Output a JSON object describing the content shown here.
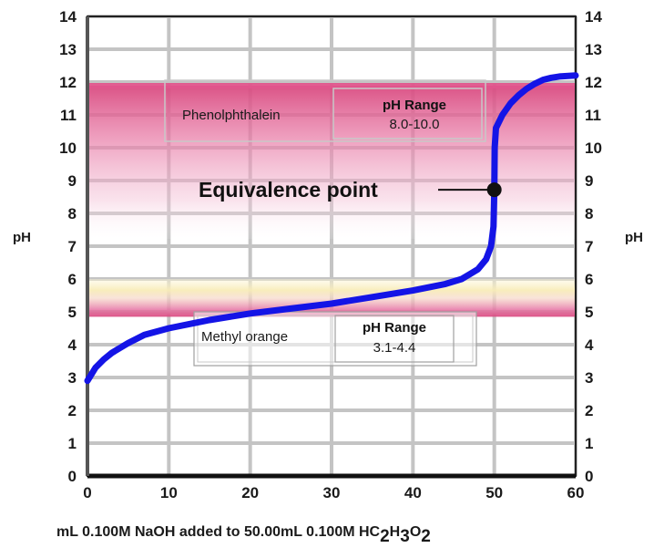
{
  "chart_data": {
    "type": "line",
    "title": "",
    "xlabel": {
      "prefix": "mL 0.100M NaOH added to 50.00mL 0.100M HC",
      "sub1": "2",
      "mid1": "H",
      "sub2": "3",
      "mid2": "O",
      "sub3": "2"
    },
    "ylabel": "pH",
    "ylabel_right": "pH",
    "xlim": [
      0,
      60
    ],
    "ylim": [
      0,
      14
    ],
    "x_ticks": [
      0,
      10,
      20,
      30,
      40,
      50,
      60
    ],
    "y_ticks": [
      0,
      1,
      2,
      3,
      4,
      5,
      6,
      7,
      8,
      9,
      10,
      11,
      12,
      13,
      14
    ],
    "grid": true,
    "series": [
      {
        "color": "#1414e6",
        "points": [
          [
            0,
            2.9
          ],
          [
            1,
            3.3
          ],
          [
            2,
            3.55
          ],
          [
            3,
            3.75
          ],
          [
            5,
            4.05
          ],
          [
            7,
            4.3
          ],
          [
            10,
            4.5
          ],
          [
            13,
            4.65
          ],
          [
            15,
            4.75
          ],
          [
            20,
            4.95
          ],
          [
            25,
            5.1
          ],
          [
            30,
            5.25
          ],
          [
            35,
            5.45
          ],
          [
            40,
            5.65
          ],
          [
            44,
            5.85
          ],
          [
            46,
            6.0
          ],
          [
            47,
            6.15
          ],
          [
            48,
            6.3
          ],
          [
            49,
            6.6
          ],
          [
            49.6,
            7.0
          ],
          [
            49.9,
            7.6
          ],
          [
            50,
            8.72
          ],
          [
            50.05,
            10.0
          ],
          [
            50.2,
            10.6
          ],
          [
            51,
            11.0
          ],
          [
            52,
            11.35
          ],
          [
            53,
            11.6
          ],
          [
            54,
            11.8
          ],
          [
            55,
            11.95
          ],
          [
            56,
            12.07
          ],
          [
            57,
            12.13
          ],
          [
            58,
            12.17
          ],
          [
            60,
            12.2
          ]
        ]
      }
    ],
    "bands": [
      {
        "name": "phenolphthalein-band",
        "from": 8.0,
        "to": 12.0,
        "color": "#e0558c"
      },
      {
        "name": "methyl-orange-band",
        "from": 4.85,
        "to": 6.0,
        "color": "#e0558c",
        "accent_color": "#f8ecb8"
      }
    ],
    "indicators": [
      {
        "name": "Phenolphthalein",
        "range_label": "pH Range",
        "range": "8.0-10.0"
      },
      {
        "name": "Methyl orange",
        "range_label": "pH Range",
        "range": "3.1-4.4"
      }
    ],
    "annotation": {
      "text": "Equivalence point",
      "x": 50,
      "y": 8.72
    }
  }
}
